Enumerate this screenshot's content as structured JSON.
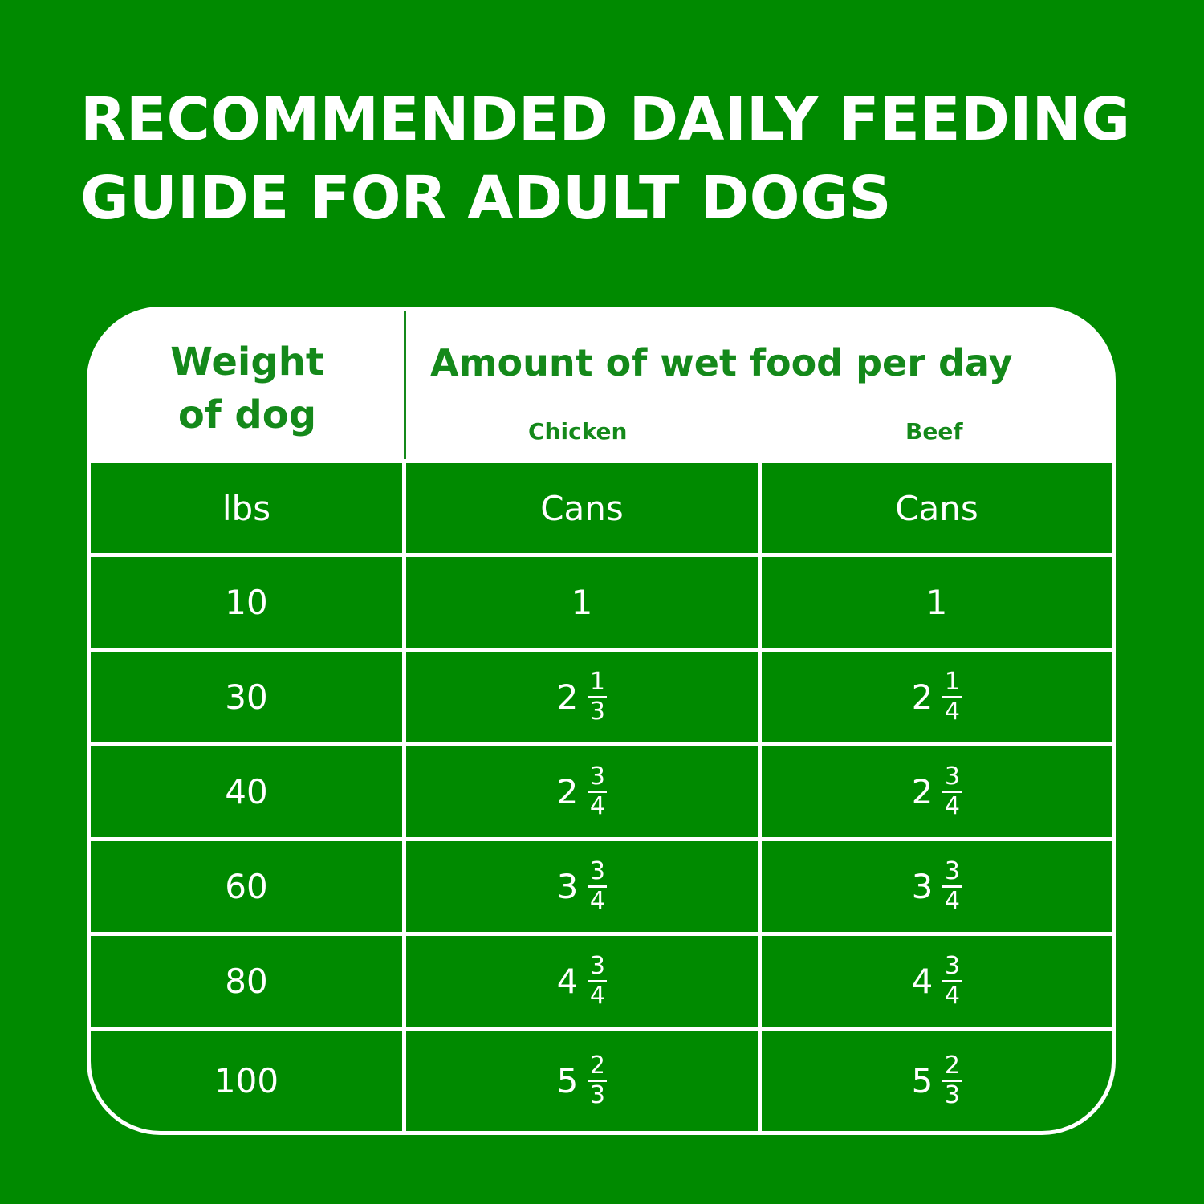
{
  "title": {
    "line1": "RECOMMENDED DAILY FEEDING",
    "line2": "GUIDE FOR ADULT DOGS"
  },
  "colors": {
    "background": "#008a00",
    "text_on_white": "#14891a"
  },
  "table": {
    "weight_header": {
      "line1": "Weight",
      "line2": "of dog"
    },
    "amount_header": "Amount of wet food per day",
    "sub_headers": [
      "Chicken",
      "Beef"
    ],
    "units": [
      "lbs",
      "Cans",
      "Cans"
    ],
    "rows": [
      {
        "weight": "10",
        "chicken": {
          "whole": "1",
          "num": "",
          "den": ""
        },
        "beef": {
          "whole": "1",
          "num": "",
          "den": ""
        }
      },
      {
        "weight": "30",
        "chicken": {
          "whole": "2",
          "num": "1",
          "den": "3"
        },
        "beef": {
          "whole": "2",
          "num": "1",
          "den": "4"
        }
      },
      {
        "weight": "40",
        "chicken": {
          "whole": "2",
          "num": "3",
          "den": "4"
        },
        "beef": {
          "whole": "2",
          "num": "3",
          "den": "4"
        }
      },
      {
        "weight": "60",
        "chicken": {
          "whole": "3",
          "num": "3",
          "den": "4"
        },
        "beef": {
          "whole": "3",
          "num": "3",
          "den": "4"
        }
      },
      {
        "weight": "80",
        "chicken": {
          "whole": "4",
          "num": "3",
          "den": "4"
        },
        "beef": {
          "whole": "4",
          "num": "3",
          "den": "4"
        }
      },
      {
        "weight": "100",
        "chicken": {
          "whole": "5",
          "num": "2",
          "den": "3"
        },
        "beef": {
          "whole": "5",
          "num": "2",
          "den": "3"
        }
      }
    ]
  }
}
